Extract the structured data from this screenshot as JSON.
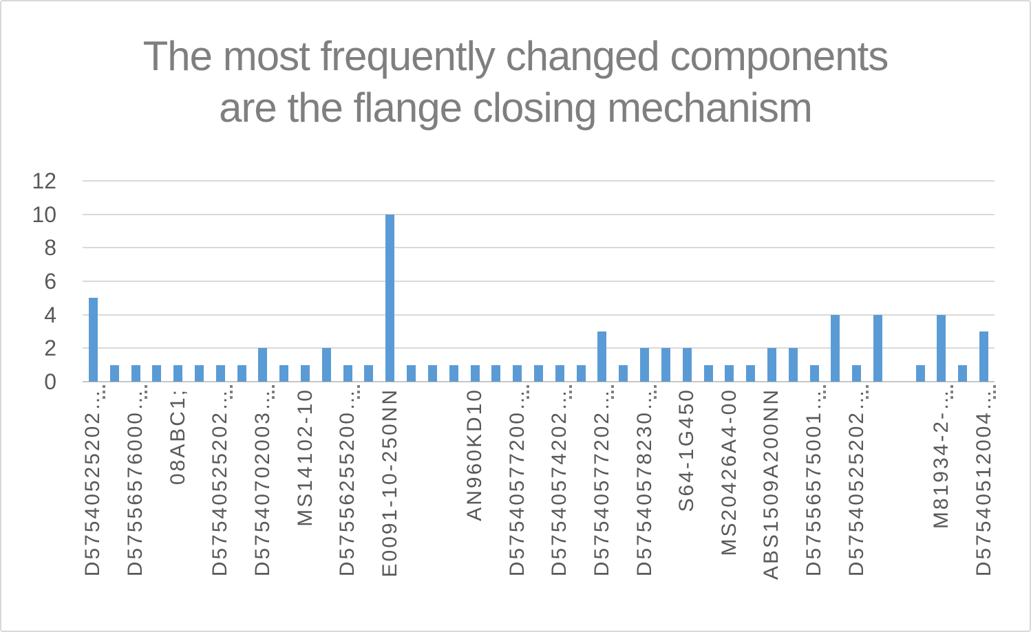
{
  "chart_data": {
    "type": "bar",
    "title": "The most frequently changed components are the flange closing mechanism",
    "title_lines": [
      "The most frequently changed components",
      "are the flange closing mechanism"
    ],
    "categories": [
      "D57540525202…",
      "",
      "D57556576000…",
      "",
      "08ABC1;",
      "",
      "D57540525202…",
      "",
      "D57540702003…",
      "",
      "MS14102-10",
      "",
      "D57556255200…",
      "",
      "E0091-10-250NN",
      "",
      "",
      "",
      "AN960KD10",
      "",
      "D57540577200…",
      "",
      "D57540574202…",
      "",
      "D57540577202…",
      "",
      "D57540578230…",
      "",
      "S64-1G450",
      "",
      "MS20426A4-00",
      "",
      "ABS1509A200NN",
      "",
      "D57556575001…",
      "",
      "D57540525202…",
      "",
      "",
      "",
      "M81934-2-…",
      "",
      "D57540512004…"
    ],
    "values": [
      5,
      1,
      1,
      1,
      1,
      1,
      1,
      1,
      2,
      1,
      1,
      2,
      1,
      1,
      10,
      1,
      1,
      1,
      1,
      1,
      1,
      1,
      1,
      1,
      3,
      1,
      2,
      2,
      2,
      1,
      1,
      1,
      2,
      2,
      1,
      4,
      1,
      4,
      0,
      1,
      4,
      1,
      3
    ],
    "xlabel": "",
    "ylabel": "",
    "ylim": [
      0,
      12
    ],
    "yticks": [
      0,
      2,
      4,
      6,
      8,
      10,
      12
    ],
    "grid": "horizontal",
    "legend": "none",
    "tick_after_category": [
      1,
      3,
      7,
      9,
      13,
      21,
      23,
      25,
      27,
      35,
      37,
      41,
      43
    ],
    "colors": {
      "bar": "#5B9BD5",
      "gridline": "#D9D9D9",
      "axis_line": "#C6C6C6",
      "title": "#7F7F7F",
      "axis_text": "#595959",
      "tick_mark": "#808080",
      "frame_border": "#D8D8D8",
      "background": "#FFFFFF"
    }
  }
}
